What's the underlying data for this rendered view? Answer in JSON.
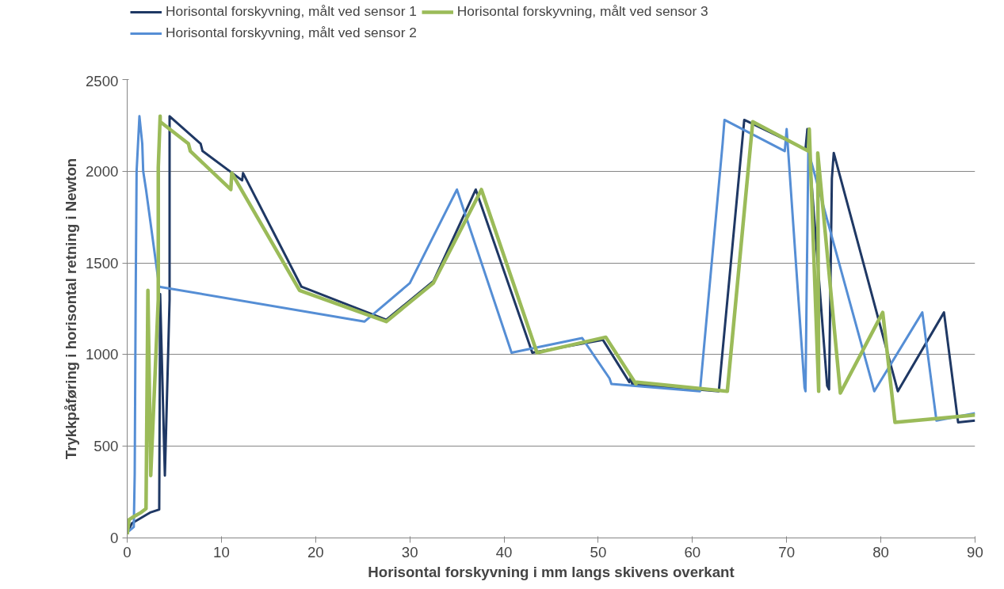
{
  "chart_data": {
    "type": "line",
    "xlabel": "Horisontal forskyvning i mm langs skivens overkant",
    "ylabel": "Trykkpåføring i horisontal retning i Newton",
    "xlim": [
      0,
      90
    ],
    "xticks": [
      0,
      10,
      20,
      30,
      40,
      50,
      60,
      70,
      80,
      90
    ],
    "ylim": [
      0,
      2500
    ],
    "yticks": [
      0,
      500,
      1000,
      1500,
      2000,
      2500
    ],
    "grid": "y",
    "legend": "top",
    "marker": "none",
    "line_style": "solid",
    "series": [
      {
        "name": "Horisontal forskyvning, målt ved sensor 1",
        "color": "#1f3864",
        "x": [
          0,
          0.5,
          1.5,
          2.5,
          3.4,
          3.5,
          4.0,
          4.5,
          4.5,
          4.5,
          7.8,
          8,
          12.2,
          12.3,
          18.5,
          27.5,
          32.5,
          37,
          43,
          50.5,
          53.3,
          53.5,
          53.6,
          62.8,
          65.5,
          72,
          72.2,
          74.3,
          74.5,
          74.8,
          75,
          81.8,
          86.7,
          88.2,
          90
        ],
        "values": [
          30,
          80,
          110,
          140,
          155,
          1330,
          340,
          1300,
          2020,
          2300,
          2150,
          2110,
          1950,
          1990,
          1370,
          1190,
          1400,
          1900,
          1010,
          1080,
          850,
          880,
          840,
          800,
          2280,
          2120,
          2230,
          830,
          810,
          1960,
          2100,
          800,
          1230,
          630,
          640
        ]
      },
      {
        "name": "Horisontal forskyvning, målt ved sensor 2",
        "color": "#558ed5",
        "x": [
          0,
          0.7,
          0.8,
          0.9,
          1.0,
          1.3,
          1.6,
          1.7,
          2.0,
          3.4,
          25.2,
          30,
          35,
          40.8,
          48.3,
          51.2,
          51.4,
          60.8,
          63.2,
          63.4,
          69.8,
          70,
          71.9,
          72,
          72.3,
          79.3,
          84.4,
          85.9,
          90
        ],
        "values": [
          30,
          60,
          350,
          1300,
          2000,
          2300,
          2150,
          2000,
          1900,
          1370,
          1180,
          1390,
          1900,
          1010,
          1090,
          870,
          840,
          800,
          2150,
          2280,
          2110,
          2230,
          820,
          800,
          2110,
          800,
          1230,
          640,
          680
        ]
      },
      {
        "name": "Horisontal forskyvning, målt ved sensor 3",
        "color": "#9bbb59",
        "x": [
          0,
          0.2,
          0.5,
          1.5,
          2.0,
          2.2,
          2.5,
          3.3,
          3.3,
          3.5,
          3.5,
          6.5,
          6.7,
          11,
          11.1,
          18.3,
          27.5,
          32.5,
          37.6,
          43.5,
          50.8,
          54,
          54.1,
          63.7,
          66.4,
          72.3,
          72.4,
          73.4,
          73.3,
          75.7,
          80.2,
          81.5,
          90
        ],
        "values": [
          20,
          100,
          110,
          140,
          160,
          1350,
          340,
          1300,
          2020,
          2300,
          2270,
          2150,
          2110,
          1900,
          1990,
          1350,
          1180,
          1390,
          1900,
          1010,
          1095,
          840,
          850,
          800,
          2270,
          2110,
          2230,
          800,
          2100,
          790,
          1230,
          630,
          670
        ]
      }
    ]
  }
}
